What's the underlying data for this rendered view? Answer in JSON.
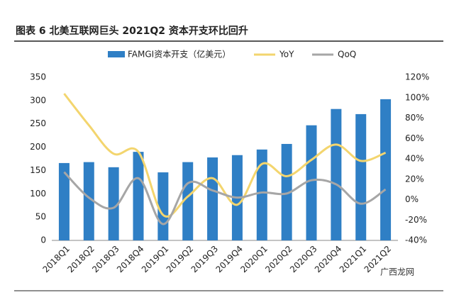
{
  "chart_data": {
    "type": "bar-line",
    "title": "图表 6  北美互联网巨头 2021Q2 资本开支环比回升",
    "categories": [
      "2018Q1",
      "2018Q2",
      "2018Q3",
      "2018Q4",
      "2019Q1",
      "2019Q2",
      "2019Q3",
      "2019Q4",
      "2020Q1",
      "2020Q2",
      "2020Q3",
      "2020Q4",
      "2021Q1",
      "2021Q2"
    ],
    "series": [
      {
        "name": "FAMGI资本开支（亿美元）",
        "color": "#2f7fc5",
        "kind": "bar",
        "values": [
          166,
          168,
          157,
          190,
          146,
          168,
          178,
          183,
          195,
          207,
          247,
          282,
          271,
          303
        ]
      },
      {
        "name": "YoY",
        "color": "#f3d56e",
        "kind": "line",
        "axis": "y2",
        "values": [
          104,
          73,
          45,
          47,
          -15,
          3,
          21,
          -5,
          35,
          23,
          39,
          54,
          38,
          46
        ]
      },
      {
        "name": "QoQ",
        "color": "#a6a6a6",
        "kind": "line",
        "axis": "y2",
        "values": [
          27,
          2,
          -8,
          21,
          -24,
          16,
          9,
          2,
          7,
          6,
          19,
          15,
          -4,
          10
        ]
      }
    ],
    "ylim": [
      0,
      350
    ],
    "yticks": [
      0,
      50,
      100,
      150,
      200,
      250,
      300,
      350
    ],
    "y2lim": [
      -40,
      120
    ],
    "y2ticks": [
      {
        "value": -40,
        "label": "-40%"
      },
      {
        "value": -20,
        "label": "-20%"
      },
      {
        "value": 0,
        "label": "0%"
      },
      {
        "value": 20,
        "label": "20%"
      },
      {
        "value": 40,
        "label": "40%"
      },
      {
        "value": 60,
        "label": "60%"
      },
      {
        "value": 80,
        "label": "80%"
      },
      {
        "value": 100,
        "label": "100%"
      },
      {
        "value": 120,
        "label": "120%"
      }
    ],
    "grid": false,
    "watermark": "广西龙网"
  }
}
